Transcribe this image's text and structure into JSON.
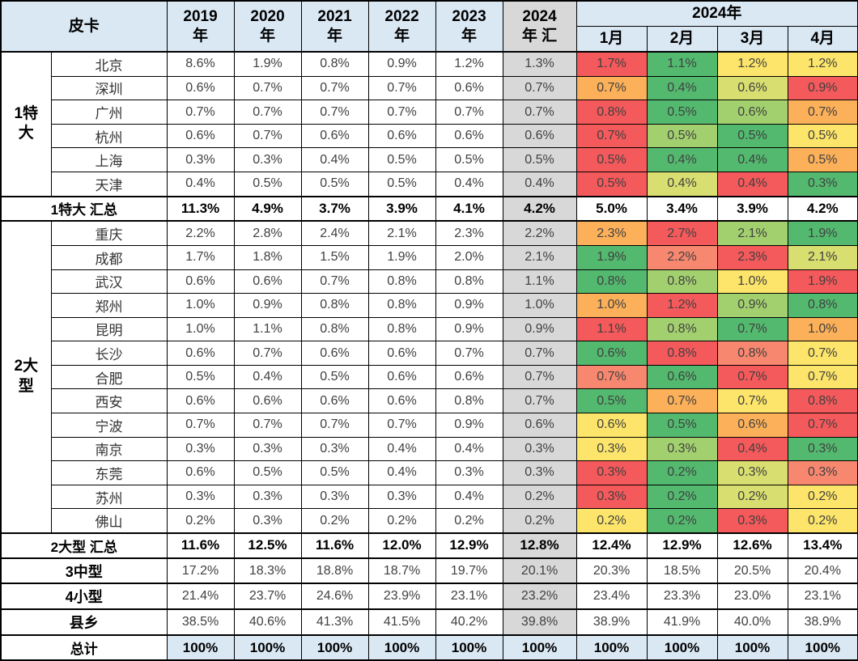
{
  "palette": {
    "red": "#F4595B",
    "salmon": "#F8876F",
    "orange": "#FBB059",
    "yellow": "#FCE56A",
    "yellowgreen": "#D8DE6F",
    "lightgreen": "#A3D06F",
    "green": "#53B96F",
    "grey": "#D8D8D8",
    "header_blue": "#DAE8F4"
  },
  "chart_data": {
    "type": "table",
    "title_cell": "皮卡",
    "year_headers": [
      "2019\n年",
      "2020\n年",
      "2021\n年",
      "2022\n年",
      "2023\n年"
    ],
    "summary_header": "2024\n年 汇",
    "span_header": "2024年",
    "month_headers": [
      "1月",
      "2月",
      "3月",
      "4月"
    ],
    "groups": [
      {
        "label": "1特大",
        "rows": 6
      },
      {
        "label": "2大型",
        "rows": 13
      }
    ],
    "rows": [
      {
        "type": "city",
        "group_start": true,
        "label": "北京",
        "values": [
          "8.6%",
          "1.9%",
          "0.8%",
          "0.9%",
          "1.2%",
          "1.3%",
          "1.7%",
          "1.1%",
          "1.2%",
          "1.2%"
        ],
        "month_colors": [
          "red",
          "green",
          "yellow",
          "yellow"
        ]
      },
      {
        "type": "city",
        "label": "深圳",
        "values": [
          "0.6%",
          "0.7%",
          "0.7%",
          "0.7%",
          "0.6%",
          "0.7%",
          "0.7%",
          "0.4%",
          "0.6%",
          "0.9%"
        ],
        "month_colors": [
          "orange",
          "green",
          "yellowgreen",
          "red"
        ]
      },
      {
        "type": "city",
        "label": "广州",
        "values": [
          "0.7%",
          "0.7%",
          "0.7%",
          "0.7%",
          "0.7%",
          "0.7%",
          "0.8%",
          "0.5%",
          "0.6%",
          "0.7%"
        ],
        "month_colors": [
          "red",
          "green",
          "lightgreen",
          "orange"
        ]
      },
      {
        "type": "city",
        "label": "杭州",
        "values": [
          "0.6%",
          "0.7%",
          "0.6%",
          "0.6%",
          "0.6%",
          "0.6%",
          "0.7%",
          "0.5%",
          "0.5%",
          "0.5%"
        ],
        "month_colors": [
          "red",
          "lightgreen",
          "green",
          "yellow"
        ]
      },
      {
        "type": "city",
        "label": "上海",
        "values": [
          "0.3%",
          "0.3%",
          "0.4%",
          "0.5%",
          "0.5%",
          "0.5%",
          "0.5%",
          "0.4%",
          "0.4%",
          "0.5%"
        ],
        "month_colors": [
          "red",
          "green",
          "green",
          "orange"
        ]
      },
      {
        "type": "city",
        "label": "天津",
        "values": [
          "0.4%",
          "0.5%",
          "0.5%",
          "0.5%",
          "0.4%",
          "0.4%",
          "0.5%",
          "0.4%",
          "0.4%",
          "0.3%"
        ],
        "month_colors": [
          "red",
          "yellowgreen",
          "red",
          "green"
        ]
      },
      {
        "type": "subtotal",
        "label": "1特大 汇总",
        "values": [
          "11.3%",
          "4.9%",
          "3.7%",
          "3.9%",
          "4.1%",
          "4.2%",
          "5.0%",
          "3.4%",
          "3.9%",
          "4.2%"
        ],
        "month_colors": null
      },
      {
        "type": "city",
        "group_start": true,
        "label": "重庆",
        "values": [
          "2.2%",
          "2.8%",
          "2.4%",
          "2.1%",
          "2.3%",
          "2.2%",
          "2.3%",
          "2.7%",
          "2.1%",
          "1.9%"
        ],
        "month_colors": [
          "orange",
          "red",
          "lightgreen",
          "green"
        ]
      },
      {
        "type": "city",
        "label": "成都",
        "values": [
          "1.7%",
          "1.8%",
          "1.5%",
          "1.9%",
          "2.0%",
          "2.1%",
          "1.9%",
          "2.2%",
          "2.3%",
          "2.1%"
        ],
        "month_colors": [
          "green",
          "salmon",
          "red",
          "yellowgreen"
        ]
      },
      {
        "type": "city",
        "label": "武汉",
        "values": [
          "0.6%",
          "0.6%",
          "0.7%",
          "0.8%",
          "0.8%",
          "1.1%",
          "0.8%",
          "0.8%",
          "1.0%",
          "1.9%"
        ],
        "month_colors": [
          "green",
          "lightgreen",
          "yellow",
          "red"
        ]
      },
      {
        "type": "city",
        "label": "郑州",
        "values": [
          "1.0%",
          "0.9%",
          "0.8%",
          "0.8%",
          "0.9%",
          "1.0%",
          "1.0%",
          "1.2%",
          "0.9%",
          "0.8%"
        ],
        "month_colors": [
          "orange",
          "red",
          "lightgreen",
          "green"
        ]
      },
      {
        "type": "city",
        "label": "昆明",
        "values": [
          "1.0%",
          "1.1%",
          "0.8%",
          "0.8%",
          "0.9%",
          "0.9%",
          "1.1%",
          "0.8%",
          "0.7%",
          "1.0%"
        ],
        "month_colors": [
          "red",
          "lightgreen",
          "green",
          "orange"
        ]
      },
      {
        "type": "city",
        "label": "长沙",
        "values": [
          "0.6%",
          "0.7%",
          "0.6%",
          "0.6%",
          "0.7%",
          "0.7%",
          "0.6%",
          "0.8%",
          "0.8%",
          "0.7%"
        ],
        "month_colors": [
          "green",
          "red",
          "salmon",
          "yellow"
        ]
      },
      {
        "type": "city",
        "label": "合肥",
        "values": [
          "0.5%",
          "0.4%",
          "0.5%",
          "0.6%",
          "0.6%",
          "0.7%",
          "0.7%",
          "0.6%",
          "0.7%",
          "0.7%"
        ],
        "month_colors": [
          "salmon",
          "green",
          "red",
          "yellow"
        ]
      },
      {
        "type": "city",
        "label": "西安",
        "values": [
          "0.6%",
          "0.6%",
          "0.6%",
          "0.6%",
          "0.8%",
          "0.7%",
          "0.5%",
          "0.7%",
          "0.7%",
          "0.8%"
        ],
        "month_colors": [
          "green",
          "orange",
          "yellow",
          "red"
        ]
      },
      {
        "type": "city",
        "label": "宁波",
        "values": [
          "0.7%",
          "0.7%",
          "0.7%",
          "0.7%",
          "0.9%",
          "0.6%",
          "0.6%",
          "0.5%",
          "0.6%",
          "0.7%"
        ],
        "month_colors": [
          "yellow",
          "green",
          "orange",
          "red"
        ]
      },
      {
        "type": "city",
        "label": "南京",
        "values": [
          "0.3%",
          "0.3%",
          "0.3%",
          "0.4%",
          "0.4%",
          "0.3%",
          "0.3%",
          "0.3%",
          "0.4%",
          "0.3%"
        ],
        "month_colors": [
          "yellow",
          "lightgreen",
          "red",
          "green"
        ]
      },
      {
        "type": "city",
        "label": "东莞",
        "values": [
          "0.6%",
          "0.5%",
          "0.5%",
          "0.4%",
          "0.3%",
          "0.3%",
          "0.3%",
          "0.2%",
          "0.3%",
          "0.3%"
        ],
        "month_colors": [
          "red",
          "green",
          "yellowgreen",
          "salmon"
        ]
      },
      {
        "type": "city",
        "label": "苏州",
        "values": [
          "0.3%",
          "0.3%",
          "0.3%",
          "0.3%",
          "0.4%",
          "0.2%",
          "0.3%",
          "0.2%",
          "0.2%",
          "0.2%"
        ],
        "month_colors": [
          "red",
          "green",
          "yellowgreen",
          "yellow"
        ]
      },
      {
        "type": "city",
        "label": "佛山",
        "values": [
          "0.2%",
          "0.3%",
          "0.2%",
          "0.2%",
          "0.2%",
          "0.2%",
          "0.2%",
          "0.2%",
          "0.3%",
          "0.2%"
        ],
        "month_colors": [
          "yellow",
          "green",
          "red",
          "yellow"
        ]
      },
      {
        "type": "subtotal",
        "label": "2大型 汇总",
        "values": [
          "11.6%",
          "12.5%",
          "11.6%",
          "12.0%",
          "12.9%",
          "12.8%",
          "12.4%",
          "12.9%",
          "12.6%",
          "13.4%"
        ],
        "month_colors": null
      },
      {
        "type": "aggregate",
        "label": "3中型",
        "values": [
          "17.2%",
          "18.3%",
          "18.8%",
          "18.7%",
          "19.7%",
          "20.1%",
          "20.3%",
          "18.5%",
          "20.5%",
          "20.4%"
        ],
        "month_colors": null
      },
      {
        "type": "aggregate",
        "label": "4小型",
        "values": [
          "21.4%",
          "23.7%",
          "24.6%",
          "23.9%",
          "23.1%",
          "23.2%",
          "23.4%",
          "23.3%",
          "23.0%",
          "23.1%"
        ],
        "month_colors": null
      },
      {
        "type": "aggregate",
        "label": "县乡",
        "values": [
          "38.5%",
          "40.6%",
          "41.3%",
          "41.5%",
          "40.2%",
          "39.8%",
          "38.9%",
          "41.9%",
          "40.0%",
          "38.9%"
        ],
        "month_colors": null
      },
      {
        "type": "total",
        "label": "总计",
        "values": [
          "100%",
          "100%",
          "100%",
          "100%",
          "100%",
          "100%",
          "100%",
          "100%",
          "100%",
          "100%"
        ],
        "month_colors": null
      }
    ]
  }
}
